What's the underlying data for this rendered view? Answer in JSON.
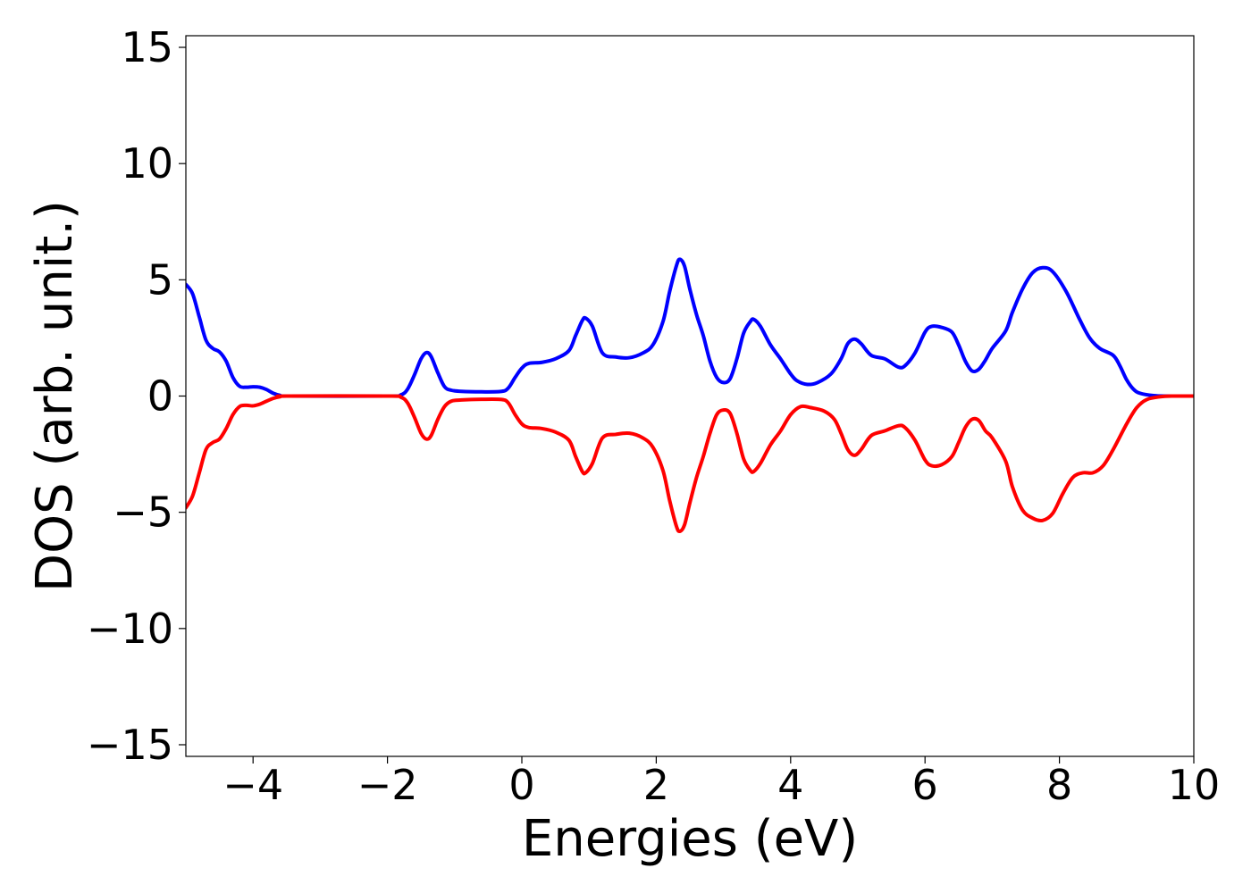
{
  "chart_data": {
    "type": "line",
    "title": "",
    "xlabel": "Energies (eV)",
    "ylabel": "DOS (arb. unit.)",
    "xlim": [
      -5,
      10
    ],
    "ylim": [
      -15.5,
      15.5
    ],
    "grid": false,
    "legend": "none",
    "x_ticks": [
      -4,
      -2,
      0,
      2,
      4,
      6,
      8,
      10
    ],
    "x_tick_labels": [
      "−4",
      "−2",
      "0",
      "2",
      "4",
      "6",
      "8",
      "10"
    ],
    "y_ticks": [
      -15,
      -10,
      -5,
      0,
      5,
      10,
      15
    ],
    "y_tick_labels": [
      "−15",
      "−10",
      "−5",
      "0",
      "5",
      "10",
      "15"
    ],
    "series": [
      {
        "color": "#0000ff",
        "points": [
          [
            -5.0,
            4.8
          ],
          [
            -4.9,
            4.4
          ],
          [
            -4.8,
            3.4
          ],
          [
            -4.7,
            2.4
          ],
          [
            -4.6,
            2.05
          ],
          [
            -4.5,
            1.9
          ],
          [
            -4.4,
            1.5
          ],
          [
            -4.3,
            0.8
          ],
          [
            -4.2,
            0.42
          ],
          [
            -4.1,
            0.38
          ],
          [
            -4.0,
            0.4
          ],
          [
            -3.9,
            0.38
          ],
          [
            -3.8,
            0.28
          ],
          [
            -3.7,
            0.12
          ],
          [
            -3.6,
            0.03
          ],
          [
            -3.5,
            0.0
          ],
          [
            -2.0,
            0.0
          ],
          [
            -1.8,
            0.05
          ],
          [
            -1.7,
            0.3
          ],
          [
            -1.6,
            0.9
          ],
          [
            -1.5,
            1.6
          ],
          [
            -1.42,
            1.87
          ],
          [
            -1.35,
            1.7
          ],
          [
            -1.25,
            1.0
          ],
          [
            -1.15,
            0.4
          ],
          [
            -1.05,
            0.25
          ],
          [
            -0.9,
            0.2
          ],
          [
            -0.6,
            0.18
          ],
          [
            -0.3,
            0.2
          ],
          [
            -0.2,
            0.35
          ],
          [
            -0.1,
            0.8
          ],
          [
            0.0,
            1.2
          ],
          [
            0.1,
            1.4
          ],
          [
            0.3,
            1.45
          ],
          [
            0.5,
            1.6
          ],
          [
            0.7,
            1.95
          ],
          [
            0.8,
            2.6
          ],
          [
            0.9,
            3.25
          ],
          [
            0.95,
            3.35
          ],
          [
            1.05,
            3.0
          ],
          [
            1.2,
            1.85
          ],
          [
            1.4,
            1.68
          ],
          [
            1.6,
            1.65
          ],
          [
            1.8,
            1.85
          ],
          [
            1.95,
            2.2
          ],
          [
            2.1,
            3.2
          ],
          [
            2.2,
            4.5
          ],
          [
            2.3,
            5.6
          ],
          [
            2.35,
            5.88
          ],
          [
            2.42,
            5.6
          ],
          [
            2.5,
            4.6
          ],
          [
            2.6,
            3.5
          ],
          [
            2.7,
            2.6
          ],
          [
            2.8,
            1.5
          ],
          [
            2.9,
            0.8
          ],
          [
            3.0,
            0.58
          ],
          [
            3.1,
            0.75
          ],
          [
            3.2,
            1.6
          ],
          [
            3.3,
            2.7
          ],
          [
            3.4,
            3.2
          ],
          [
            3.45,
            3.3
          ],
          [
            3.55,
            3.0
          ],
          [
            3.7,
            2.2
          ],
          [
            3.85,
            1.6
          ],
          [
            4.0,
            0.95
          ],
          [
            4.1,
            0.65
          ],
          [
            4.25,
            0.5
          ],
          [
            4.4,
            0.58
          ],
          [
            4.6,
            0.95
          ],
          [
            4.75,
            1.6
          ],
          [
            4.85,
            2.25
          ],
          [
            4.95,
            2.45
          ],
          [
            5.05,
            2.25
          ],
          [
            5.2,
            1.75
          ],
          [
            5.4,
            1.6
          ],
          [
            5.6,
            1.25
          ],
          [
            5.7,
            1.3
          ],
          [
            5.85,
            1.85
          ],
          [
            6.0,
            2.75
          ],
          [
            6.1,
            3.0
          ],
          [
            6.25,
            2.95
          ],
          [
            6.4,
            2.75
          ],
          [
            6.5,
            2.2
          ],
          [
            6.6,
            1.5
          ],
          [
            6.7,
            1.08
          ],
          [
            6.8,
            1.15
          ],
          [
            6.9,
            1.55
          ],
          [
            7.0,
            2.05
          ],
          [
            7.2,
            2.8
          ],
          [
            7.3,
            3.6
          ],
          [
            7.45,
            4.6
          ],
          [
            7.6,
            5.3
          ],
          [
            7.75,
            5.52
          ],
          [
            7.9,
            5.35
          ],
          [
            8.1,
            4.5
          ],
          [
            8.3,
            3.3
          ],
          [
            8.45,
            2.5
          ],
          [
            8.6,
            2.05
          ],
          [
            8.8,
            1.75
          ],
          [
            8.9,
            1.3
          ],
          [
            9.0,
            0.7
          ],
          [
            9.1,
            0.3
          ],
          [
            9.2,
            0.12
          ],
          [
            9.4,
            0.02
          ],
          [
            9.6,
            0.0
          ],
          [
            10.0,
            0.0
          ]
        ]
      },
      {
        "color": "#ff0000",
        "points": [
          [
            -5.0,
            -4.8
          ],
          [
            -4.9,
            -4.3
          ],
          [
            -4.8,
            -3.3
          ],
          [
            -4.7,
            -2.3
          ],
          [
            -4.6,
            -2.0
          ],
          [
            -4.5,
            -1.85
          ],
          [
            -4.4,
            -1.4
          ],
          [
            -4.3,
            -0.8
          ],
          [
            -4.2,
            -0.45
          ],
          [
            -4.1,
            -0.4
          ],
          [
            -4.0,
            -0.42
          ],
          [
            -3.9,
            -0.35
          ],
          [
            -3.8,
            -0.22
          ],
          [
            -3.7,
            -0.1
          ],
          [
            -3.6,
            -0.03
          ],
          [
            -3.5,
            0.0
          ],
          [
            -2.0,
            0.0
          ],
          [
            -1.8,
            -0.05
          ],
          [
            -1.7,
            -0.3
          ],
          [
            -1.6,
            -0.9
          ],
          [
            -1.5,
            -1.6
          ],
          [
            -1.42,
            -1.85
          ],
          [
            -1.35,
            -1.7
          ],
          [
            -1.25,
            -1.0
          ],
          [
            -1.15,
            -0.45
          ],
          [
            -1.05,
            -0.22
          ],
          [
            -0.9,
            -0.17
          ],
          [
            -0.6,
            -0.14
          ],
          [
            -0.3,
            -0.15
          ],
          [
            -0.2,
            -0.3
          ],
          [
            -0.1,
            -0.8
          ],
          [
            0.0,
            -1.2
          ],
          [
            0.1,
            -1.35
          ],
          [
            0.3,
            -1.4
          ],
          [
            0.5,
            -1.55
          ],
          [
            0.7,
            -1.9
          ],
          [
            0.8,
            -2.6
          ],
          [
            0.9,
            -3.25
          ],
          [
            0.95,
            -3.3
          ],
          [
            1.05,
            -2.9
          ],
          [
            1.2,
            -1.8
          ],
          [
            1.4,
            -1.65
          ],
          [
            1.6,
            -1.6
          ],
          [
            1.8,
            -1.8
          ],
          [
            1.95,
            -2.2
          ],
          [
            2.1,
            -3.2
          ],
          [
            2.2,
            -4.5
          ],
          [
            2.3,
            -5.6
          ],
          [
            2.35,
            -5.82
          ],
          [
            2.42,
            -5.55
          ],
          [
            2.5,
            -4.6
          ],
          [
            2.6,
            -3.5
          ],
          [
            2.7,
            -2.6
          ],
          [
            2.8,
            -1.6
          ],
          [
            2.9,
            -0.8
          ],
          [
            3.0,
            -0.6
          ],
          [
            3.1,
            -0.75
          ],
          [
            3.2,
            -1.6
          ],
          [
            3.3,
            -2.7
          ],
          [
            3.4,
            -3.2
          ],
          [
            3.45,
            -3.25
          ],
          [
            3.55,
            -2.9
          ],
          [
            3.7,
            -2.1
          ],
          [
            3.85,
            -1.5
          ],
          [
            4.0,
            -0.8
          ],
          [
            4.15,
            -0.45
          ],
          [
            4.3,
            -0.5
          ],
          [
            4.5,
            -0.65
          ],
          [
            4.65,
            -1.0
          ],
          [
            4.75,
            -1.6
          ],
          [
            4.85,
            -2.3
          ],
          [
            4.95,
            -2.55
          ],
          [
            5.05,
            -2.3
          ],
          [
            5.2,
            -1.7
          ],
          [
            5.4,
            -1.5
          ],
          [
            5.6,
            -1.28
          ],
          [
            5.7,
            -1.35
          ],
          [
            5.85,
            -1.9
          ],
          [
            6.0,
            -2.75
          ],
          [
            6.1,
            -3.0
          ],
          [
            6.25,
            -2.95
          ],
          [
            6.4,
            -2.6
          ],
          [
            6.5,
            -2.0
          ],
          [
            6.6,
            -1.35
          ],
          [
            6.7,
            -1.0
          ],
          [
            6.8,
            -1.05
          ],
          [
            6.9,
            -1.5
          ],
          [
            7.0,
            -1.8
          ],
          [
            7.2,
            -2.8
          ],
          [
            7.3,
            -3.9
          ],
          [
            7.45,
            -4.9
          ],
          [
            7.6,
            -5.25
          ],
          [
            7.75,
            -5.35
          ],
          [
            7.9,
            -5.05
          ],
          [
            8.05,
            -4.2
          ],
          [
            8.2,
            -3.5
          ],
          [
            8.35,
            -3.3
          ],
          [
            8.5,
            -3.3
          ],
          [
            8.65,
            -3.0
          ],
          [
            8.8,
            -2.3
          ],
          [
            9.0,
            -1.2
          ],
          [
            9.15,
            -0.5
          ],
          [
            9.3,
            -0.15
          ],
          [
            9.5,
            -0.03
          ],
          [
            9.7,
            0.0
          ],
          [
            10.0,
            0.0
          ]
        ]
      }
    ]
  }
}
